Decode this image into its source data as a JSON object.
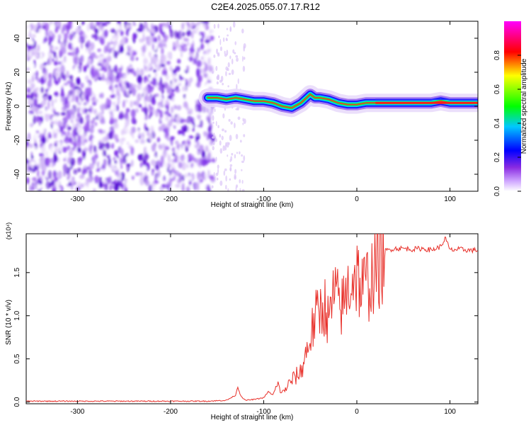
{
  "title": "C2E4.2025.055.07.17.R12",
  "chart_data": [
    {
      "type": "heatmap",
      "xlabel": "Height of straight line (km)",
      "ylabel": "Frequency (Hz)",
      "xlim": [
        -355,
        130
      ],
      "ylim": [
        -50,
        50
      ],
      "x_ticks": [
        -300,
        -200,
        -100,
        0,
        100
      ],
      "x_tick_labels": [
        "-300",
        "-200",
        "-100",
        "0",
        "100"
      ],
      "y_ticks": [
        -40,
        -20,
        0,
        20,
        40
      ],
      "y_tick_labels": [
        "-40",
        "-20",
        "0",
        "20",
        "40"
      ],
      "noise_region_x": [
        -355,
        -160
      ],
      "signal_track": {
        "x": [
          -160,
          -150,
          -140,
          -130,
          -120,
          -110,
          -100,
          -90,
          -80,
          -70,
          -60,
          -50,
          -45,
          -40,
          -30,
          -20,
          -10,
          0,
          10,
          20,
          40,
          60,
          80,
          90,
          100,
          110,
          130
        ],
        "y": [
          5,
          5,
          4,
          5,
          4,
          3,
          3,
          2,
          0,
          -1,
          2,
          7,
          5,
          5,
          4,
          2,
          1,
          1,
          2,
          2,
          2,
          2,
          2,
          3,
          2,
          2,
          2
        ]
      },
      "colorbar": {
        "label": "Normalized spectral amplitude",
        "range": [
          0,
          1
        ],
        "ticks": [
          0.0,
          0.2,
          0.4,
          0.6,
          0.8
        ],
        "tick_labels": [
          "0.0",
          "0.2",
          "0.4",
          "0.6",
          "0.8"
        ],
        "colormap": [
          "#ffffff",
          "#8a2be2",
          "#0000ff",
          "#00ffff",
          "#00ff00",
          "#ffff00",
          "#ff0000",
          "#ff00ff"
        ]
      },
      "grid": false,
      "legend": "none"
    },
    {
      "type": "line",
      "xlabel": "Height of straight line (km)",
      "ylabel": "SNR (10 * v/v)",
      "multiplier_label": "(x10⁴)",
      "xlim": [
        -355,
        130
      ],
      "ylim": [
        -0.02,
        1.95
      ],
      "x_ticks": [
        -300,
        -200,
        -100,
        0,
        100
      ],
      "x_tick_labels": [
        "-300",
        "-200",
        "-100",
        "0",
        "100"
      ],
      "y_ticks": [
        0.0,
        0.5,
        1.0,
        1.5
      ],
      "y_tick_labels": [
        "0.0",
        "0.5",
        "1.0",
        "1.5"
      ],
      "series": [
        {
          "color": "#e8302a",
          "x": [
            -355,
            -300,
            -250,
            -200,
            -160,
            -140,
            -130,
            -128,
            -125,
            -120,
            -110,
            -100,
            -95,
            -90,
            -85,
            -80,
            -75,
            -70,
            -60,
            -55,
            -50,
            -45,
            -40,
            -35,
            -30,
            -25,
            -20,
            -15,
            -10,
            -5,
            0,
            5,
            10,
            15,
            20,
            25,
            30,
            40,
            50,
            60,
            70,
            80,
            90,
            95,
            100,
            110,
            120,
            130
          ],
          "y": [
            0.01,
            0.01,
            0.01,
            0.01,
            0.01,
            0.02,
            0.08,
            0.18,
            0.08,
            0.02,
            0.03,
            0.05,
            0.12,
            0.08,
            0.2,
            0.1,
            0.18,
            0.25,
            0.35,
            0.55,
            0.75,
            0.95,
            1.05,
            1.15,
            0.9,
            1.25,
            1.15,
            1.1,
            1.3,
            1.45,
            1.5,
            1.3,
            1.35,
            1.45,
            1.5,
            1.65,
            1.75,
            1.78,
            1.78,
            1.77,
            1.78,
            1.76,
            1.8,
            1.9,
            1.76,
            1.77,
            1.76,
            1.76
          ]
        }
      ],
      "grid": false,
      "legend": "none"
    }
  ]
}
